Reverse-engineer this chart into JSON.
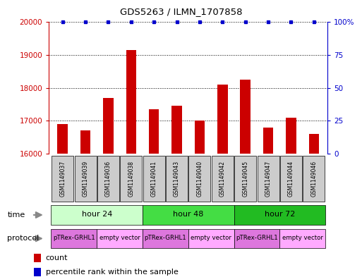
{
  "title": "GDS5263 / ILMN_1707858",
  "samples": [
    "GSM1149037",
    "GSM1149039",
    "GSM1149036",
    "GSM1149038",
    "GSM1149041",
    "GSM1149043",
    "GSM1149040",
    "GSM1149042",
    "GSM1149045",
    "GSM1149047",
    "GSM1149044",
    "GSM1149046"
  ],
  "counts": [
    16900,
    16700,
    17700,
    19150,
    17350,
    17450,
    17000,
    18100,
    18250,
    16800,
    17100,
    16600
  ],
  "percentiles": [
    100,
    100,
    100,
    100,
    100,
    100,
    100,
    100,
    100,
    100,
    100,
    100
  ],
  "bar_color": "#cc0000",
  "dot_color": "#0000cc",
  "ylim_left": [
    16000,
    20000
  ],
  "ylim_right": [
    0,
    100
  ],
  "yticks_left": [
    16000,
    17000,
    18000,
    19000,
    20000
  ],
  "yticks_right": [
    0,
    25,
    50,
    75,
    100
  ],
  "ytick_right_labels": [
    "0",
    "25",
    "50",
    "75",
    "100%"
  ],
  "time_groups": [
    {
      "label": "hour 24",
      "start": 0,
      "end": 4,
      "color": "#ccffcc"
    },
    {
      "label": "hour 48",
      "start": 4,
      "end": 8,
      "color": "#44dd44"
    },
    {
      "label": "hour 72",
      "start": 8,
      "end": 12,
      "color": "#22bb22"
    }
  ],
  "protocol_groups": [
    {
      "label": "pTRex-GRHL1",
      "start": 0,
      "end": 2,
      "color": "#dd77dd"
    },
    {
      "label": "empty vector",
      "start": 2,
      "end": 4,
      "color": "#ffaaff"
    },
    {
      "label": "pTRex-GRHL1",
      "start": 4,
      "end": 6,
      "color": "#dd77dd"
    },
    {
      "label": "empty vector",
      "start": 6,
      "end": 8,
      "color": "#ffaaff"
    },
    {
      "label": "pTRex-GRHL1",
      "start": 8,
      "end": 10,
      "color": "#dd77dd"
    },
    {
      "label": "empty vector",
      "start": 10,
      "end": 12,
      "color": "#ffaaff"
    }
  ],
  "time_label": "time",
  "protocol_label": "protocol",
  "legend_count_label": "count",
  "legend_percentile_label": "percentile rank within the sample",
  "background_color": "#ffffff",
  "sample_box_color": "#cccccc",
  "left_axis_color": "#cc0000",
  "right_axis_color": "#0000cc",
  "arrow_color": "#888888"
}
